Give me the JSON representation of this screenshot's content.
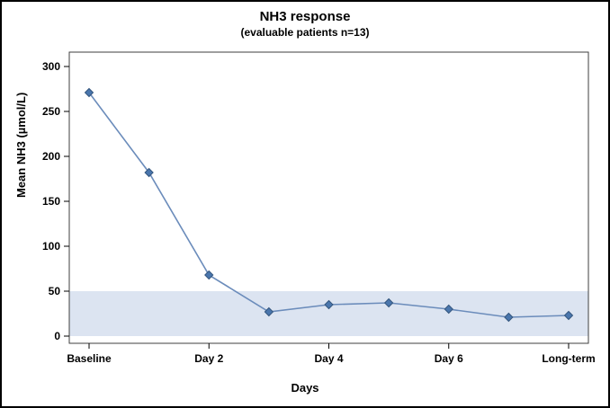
{
  "chart_data": {
    "type": "line",
    "title": "NH3 response",
    "subtitle": "(evaluable patients n=13)",
    "xlabel": "Days",
    "ylabel": "Mean NH3 (µmol/L)",
    "categories": [
      "Baseline",
      "",
      "Day 2",
      "",
      "Day 4",
      "",
      "Day 6",
      "",
      "Long-term"
    ],
    "series": [
      {
        "name": "Mean NH3",
        "values": [
          271,
          182,
          68,
          27,
          35,
          37,
          30,
          21,
          23
        ]
      }
    ],
    "y_ticks": [
      0,
      50,
      100,
      150,
      200,
      250,
      300
    ],
    "ylim": [
      -8,
      316
    ],
    "grid": false,
    "legend": "none",
    "reference_band": {
      "from": 0,
      "to": 50,
      "label": "normal range band"
    },
    "colors": {
      "line": "#6b8cbb",
      "marker_fill": "#4a76ad",
      "marker_stroke": "#34567e",
      "band": "#dce4f1",
      "frame": "#3f3f3f",
      "tick": "#000000",
      "background": "#ffffff"
    },
    "marker": "diamond"
  }
}
